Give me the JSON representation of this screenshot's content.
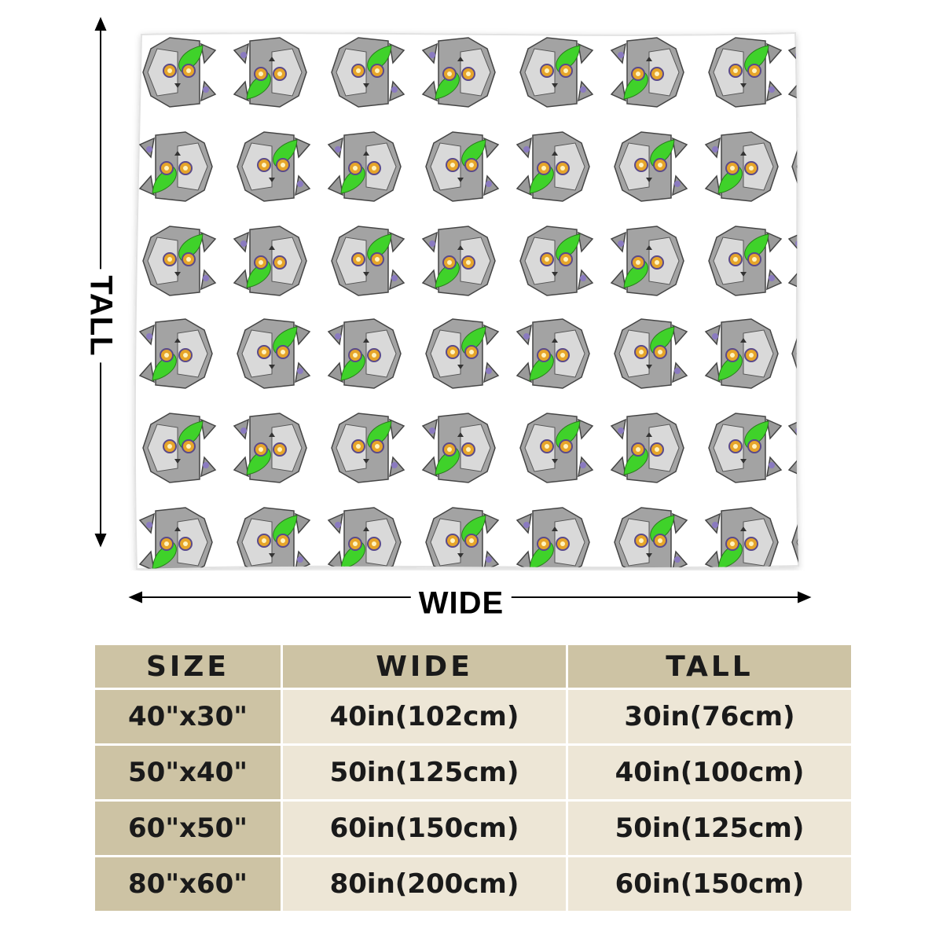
{
  "diagram": {
    "tall_label": "TALL",
    "wide_label": "WIDE",
    "pattern_motif": "gray-cat-face-with-green-hat-icon",
    "colors": {
      "motif_gray": "#9a9a9a",
      "motif_green": "#3fd22a",
      "motif_eye": "#e6a52a",
      "blanket": "#ffffff"
    }
  },
  "size_table": {
    "headers": [
      "SIZE",
      "WIDE",
      "TALL"
    ],
    "rows": [
      [
        "40\"x30\"",
        "40in(102cm)",
        "30in(76cm)"
      ],
      [
        "50\"x40\"",
        "50in(125cm)",
        "40in(100cm)"
      ],
      [
        "60\"x50\"",
        "60in(150cm)",
        "50in(125cm)"
      ],
      [
        "80\"x60\"",
        "80in(200cm)",
        "60in(150cm)"
      ]
    ],
    "colors": {
      "header_bg": "#cdc3a4",
      "label_bg": "#cdc3a4",
      "cell_bg": "#ede6d6"
    }
  }
}
